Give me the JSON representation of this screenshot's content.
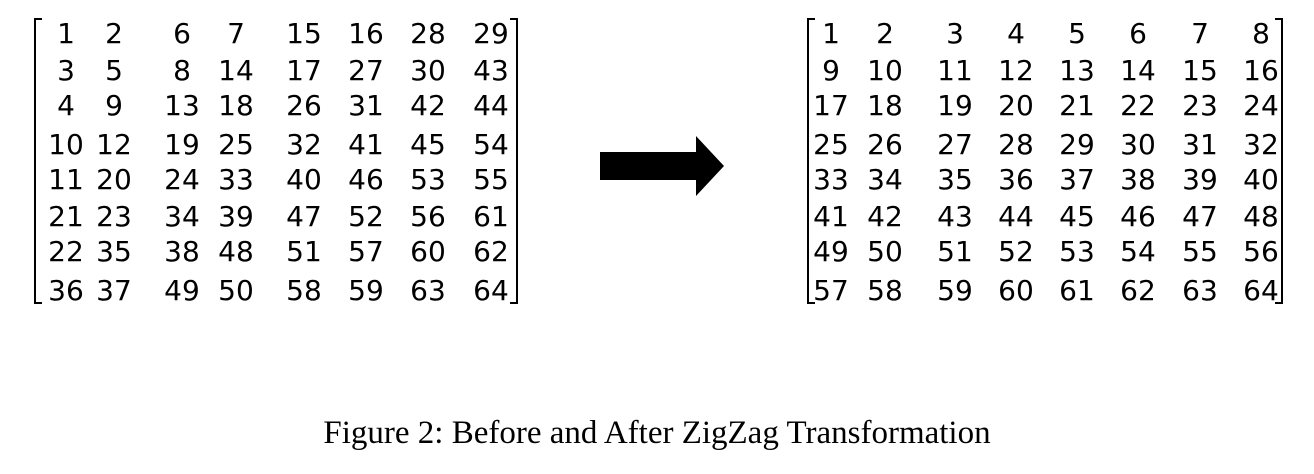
{
  "before_matrix": [
    [
      "1",
      "2",
      "6",
      "7",
      "15",
      "16",
      "28",
      "29"
    ],
    [
      "3",
      "5",
      "8",
      "14",
      "17",
      "27",
      "30",
      "43"
    ],
    [
      "4",
      "9",
      "13",
      "18",
      "26",
      "31",
      "42",
      "44"
    ],
    [
      "10",
      "12",
      "19",
      "25",
      "32",
      "41",
      "45",
      "54"
    ],
    [
      "11",
      "20",
      "24",
      "33",
      "40",
      "46",
      "53",
      "55"
    ],
    [
      "21",
      "23",
      "34",
      "39",
      "47",
      "52",
      "56",
      "61"
    ],
    [
      "22",
      "35",
      "38",
      "48",
      "51",
      "57",
      "60",
      "62"
    ],
    [
      "36",
      "37",
      "49",
      "50",
      "58",
      "59",
      "63",
      "64"
    ]
  ],
  "after_matrix": [
    [
      "1",
      "2",
      "3",
      "4",
      "5",
      "6",
      "7",
      "8"
    ],
    [
      "9",
      "10",
      "11",
      "12",
      "13",
      "14",
      "15",
      "16"
    ],
    [
      "17",
      "18",
      "19",
      "20",
      "21",
      "22",
      "23",
      "24"
    ],
    [
      "25",
      "26",
      "27",
      "28",
      "29",
      "30",
      "31",
      "32"
    ],
    [
      "33",
      "34",
      "35",
      "36",
      "37",
      "38",
      "39",
      "40"
    ],
    [
      "41",
      "42",
      "43",
      "44",
      "45",
      "46",
      "47",
      "48"
    ],
    [
      "49",
      "50",
      "51",
      "52",
      "53",
      "54",
      "55",
      "56"
    ],
    [
      "57",
      "58",
      "59",
      "60",
      "61",
      "62",
      "63",
      "64"
    ]
  ],
  "arrow_icon": "right-arrow-icon",
  "caption": "Figure 2: Before and After ZigZag Transformation"
}
